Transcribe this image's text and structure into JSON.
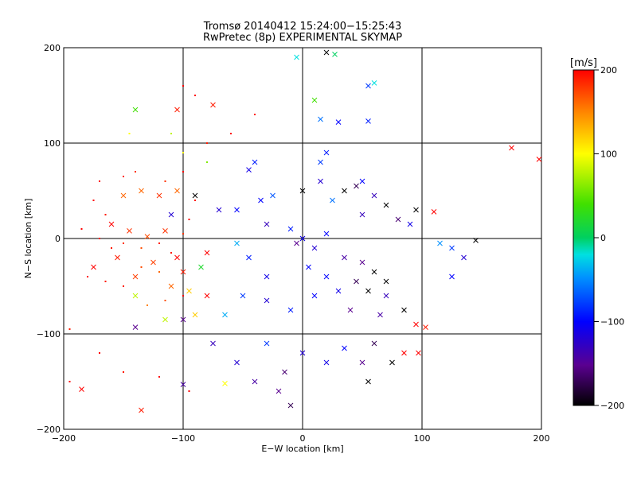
{
  "chart_data": {
    "type": "scatter",
    "title": "Tromsø 20140412 15:24:00−15:25:43",
    "subtitle": "RwPretec (8p) EXPERIMENTAL SKYMAP",
    "xlabel": "E−W location [km]",
    "ylabel": "N−S location [km]",
    "xlim": [
      -200,
      200
    ],
    "ylim": [
      -200,
      200
    ],
    "xticks": [
      -200,
      -100,
      0,
      100,
      200
    ],
    "yticks": [
      -200,
      -100,
      0,
      100,
      200
    ],
    "xtick_labels": [
      "−200",
      "−100",
      "0",
      "100",
      "200"
    ],
    "ytick_labels": [
      "−200",
      "−100",
      "0",
      "100",
      "200"
    ],
    "grid": true,
    "colorbar": {
      "label": "[m/s]",
      "range": [
        -200,
        200
      ],
      "ticks": [
        200,
        100,
        0,
        -100,
        -200
      ],
      "tick_labels": [
        "200",
        "100",
        "0",
        "−100",
        "−200"
      ],
      "colormap": "rainbow (black→purple→blue→cyan→green→yellow→red)"
    },
    "series": [
      {
        "marker": "x",
        "points": [
          [
            -140,
            135,
            40
          ],
          [
            -105,
            135,
            190
          ],
          [
            -75,
            140,
            190
          ],
          [
            10,
            145,
            40
          ],
          [
            15,
            125,
            -60
          ],
          [
            55,
            160,
            -80
          ],
          [
            60,
            163,
            -20
          ],
          [
            30,
            122,
            -100
          ],
          [
            55,
            123,
            -90
          ],
          [
            27,
            193,
            0
          ],
          [
            -5,
            190,
            -20
          ],
          [
            20,
            195,
            -200
          ],
          [
            175,
            95,
            200
          ],
          [
            198,
            83,
            200
          ],
          [
            -150,
            45,
            160
          ],
          [
            -135,
            50,
            160
          ],
          [
            -120,
            45,
            180
          ],
          [
            -105,
            50,
            160
          ],
          [
            -160,
            15,
            200
          ],
          [
            -145,
            8,
            180
          ],
          [
            -130,
            2,
            170
          ],
          [
            -115,
            8,
            180
          ],
          [
            -155,
            -20,
            190
          ],
          [
            -125,
            -25,
            175
          ],
          [
            -100,
            -35,
            190
          ],
          [
            -175,
            -30,
            200
          ],
          [
            -140,
            -40,
            175
          ],
          [
            -110,
            -50,
            160
          ],
          [
            -95,
            -55,
            120
          ],
          [
            -140,
            -60,
            80
          ],
          [
            -105,
            -20,
            200
          ],
          [
            -85,
            -30,
            20
          ],
          [
            -80,
            -15,
            200
          ],
          [
            -90,
            45,
            -200
          ],
          [
            -70,
            30,
            -120
          ],
          [
            -55,
            30,
            -100
          ],
          [
            -35,
            40,
            -100
          ],
          [
            -25,
            45,
            -70
          ],
          [
            0,
            50,
            -200
          ],
          [
            15,
            60,
            -120
          ],
          [
            25,
            40,
            -60
          ],
          [
            35,
            50,
            -200
          ],
          [
            45,
            55,
            -170
          ],
          [
            60,
            45,
            -130
          ],
          [
            70,
            35,
            -200
          ],
          [
            50,
            25,
            -130
          ],
          [
            80,
            20,
            -160
          ],
          [
            90,
            15,
            -110
          ],
          [
            95,
            30,
            -200
          ],
          [
            -30,
            15,
            -130
          ],
          [
            -10,
            10,
            -90
          ],
          [
            20,
            5,
            -100
          ],
          [
            10,
            -10,
            -120
          ],
          [
            35,
            -20,
            -140
          ],
          [
            50,
            -25,
            -150
          ],
          [
            60,
            -35,
            -200
          ],
          [
            70,
            -45,
            -200
          ],
          [
            45,
            -45,
            -170
          ],
          [
            30,
            -55,
            -110
          ],
          [
            20,
            -40,
            -100
          ],
          [
            55,
            -55,
            -200
          ],
          [
            70,
            -60,
            -130
          ],
          [
            85,
            -75,
            -200
          ],
          [
            95,
            -90,
            200
          ],
          [
            103,
            -93,
            190
          ],
          [
            65,
            -80,
            -140
          ],
          [
            40,
            -75,
            -150
          ],
          [
            10,
            -60,
            -100
          ],
          [
            -10,
            -75,
            -90
          ],
          [
            -30,
            -65,
            -120
          ],
          [
            -50,
            -60,
            -80
          ],
          [
            -65,
            -80,
            -40
          ],
          [
            -90,
            -80,
            120
          ],
          [
            -80,
            -60,
            200
          ],
          [
            -100,
            -85,
            -150
          ],
          [
            -75,
            -110,
            -130
          ],
          [
            -55,
            -130,
            -120
          ],
          [
            -40,
            -150,
            -140
          ],
          [
            -20,
            -160,
            -150
          ],
          [
            -10,
            -175,
            -170
          ],
          [
            -15,
            -140,
            -160
          ],
          [
            0,
            -120,
            -120
          ],
          [
            20,
            -130,
            -110
          ],
          [
            35,
            -115,
            -100
          ],
          [
            50,
            -130,
            -150
          ],
          [
            55,
            -150,
            -200
          ],
          [
            60,
            -110,
            -170
          ],
          [
            75,
            -130,
            -200
          ],
          [
            85,
            -120,
            200
          ],
          [
            97,
            -120,
            200
          ],
          [
            -185,
            -158,
            200
          ],
          [
            -135,
            -180,
            190
          ],
          [
            -100,
            -153,
            -140
          ],
          [
            -65,
            -152,
            100
          ],
          [
            -140,
            -93,
            -150
          ],
          [
            -30,
            -40,
            -110
          ],
          [
            -45,
            -20,
            -90
          ],
          [
            5,
            -30,
            -100
          ],
          [
            -5,
            -5,
            -150
          ],
          [
            0,
            0,
            -110
          ],
          [
            -55,
            -5,
            -40
          ],
          [
            -110,
            25,
            -120
          ],
          [
            -115,
            -85,
            80
          ],
          [
            115,
            -5,
            -50
          ],
          [
            125,
            -10,
            -80
          ],
          [
            135,
            -20,
            -120
          ],
          [
            145,
            -2,
            -200
          ],
          [
            110,
            28,
            200
          ],
          [
            125,
            -40,
            -100
          ],
          [
            -40,
            80,
            -90
          ],
          [
            -45,
            72,
            -110
          ],
          [
            15,
            80,
            -80
          ],
          [
            50,
            60,
            -100
          ],
          [
            20,
            90,
            -90
          ],
          [
            -30,
            -110,
            -80
          ]
        ]
      },
      {
        "marker": "dot",
        "points": [
          [
            -170,
            60,
            200
          ],
          [
            -150,
            65,
            190
          ],
          [
            -140,
            70,
            180
          ],
          [
            -175,
            40,
            200
          ],
          [
            -165,
            25,
            190
          ],
          [
            -185,
            10,
            200
          ],
          [
            -170,
            0,
            200
          ],
          [
            -160,
            -10,
            190
          ],
          [
            -150,
            -5,
            180
          ],
          [
            -135,
            -10,
            170
          ],
          [
            -120,
            -5,
            190
          ],
          [
            -180,
            -40,
            200
          ],
          [
            -165,
            -45,
            190
          ],
          [
            -150,
            -50,
            190
          ],
          [
            -135,
            -30,
            170
          ],
          [
            -120,
            -35,
            160
          ],
          [
            -110,
            -15,
            190
          ],
          [
            -100,
            5,
            180
          ],
          [
            -95,
            20,
            200
          ],
          [
            -90,
            40,
            190
          ],
          [
            -115,
            60,
            180
          ],
          [
            -100,
            70,
            200
          ],
          [
            -100,
            -60,
            200
          ],
          [
            -115,
            -65,
            170
          ],
          [
            -130,
            -70,
            150
          ],
          [
            -195,
            -95,
            190
          ],
          [
            -170,
            -120,
            200
          ],
          [
            -150,
            -140,
            190
          ],
          [
            -120,
            -145,
            200
          ],
          [
            -95,
            -160,
            200
          ],
          [
            -100,
            160,
            200
          ],
          [
            -90,
            150,
            200
          ],
          [
            -80,
            100,
            190
          ],
          [
            -60,
            110,
            200
          ],
          [
            -40,
            130,
            190
          ],
          [
            -100,
            90,
            100
          ],
          [
            -110,
            110,
            80
          ],
          [
            -195,
            -150,
            200
          ],
          [
            -145,
            110,
            100
          ],
          [
            -80,
            80,
            60
          ]
        ]
      }
    ]
  }
}
